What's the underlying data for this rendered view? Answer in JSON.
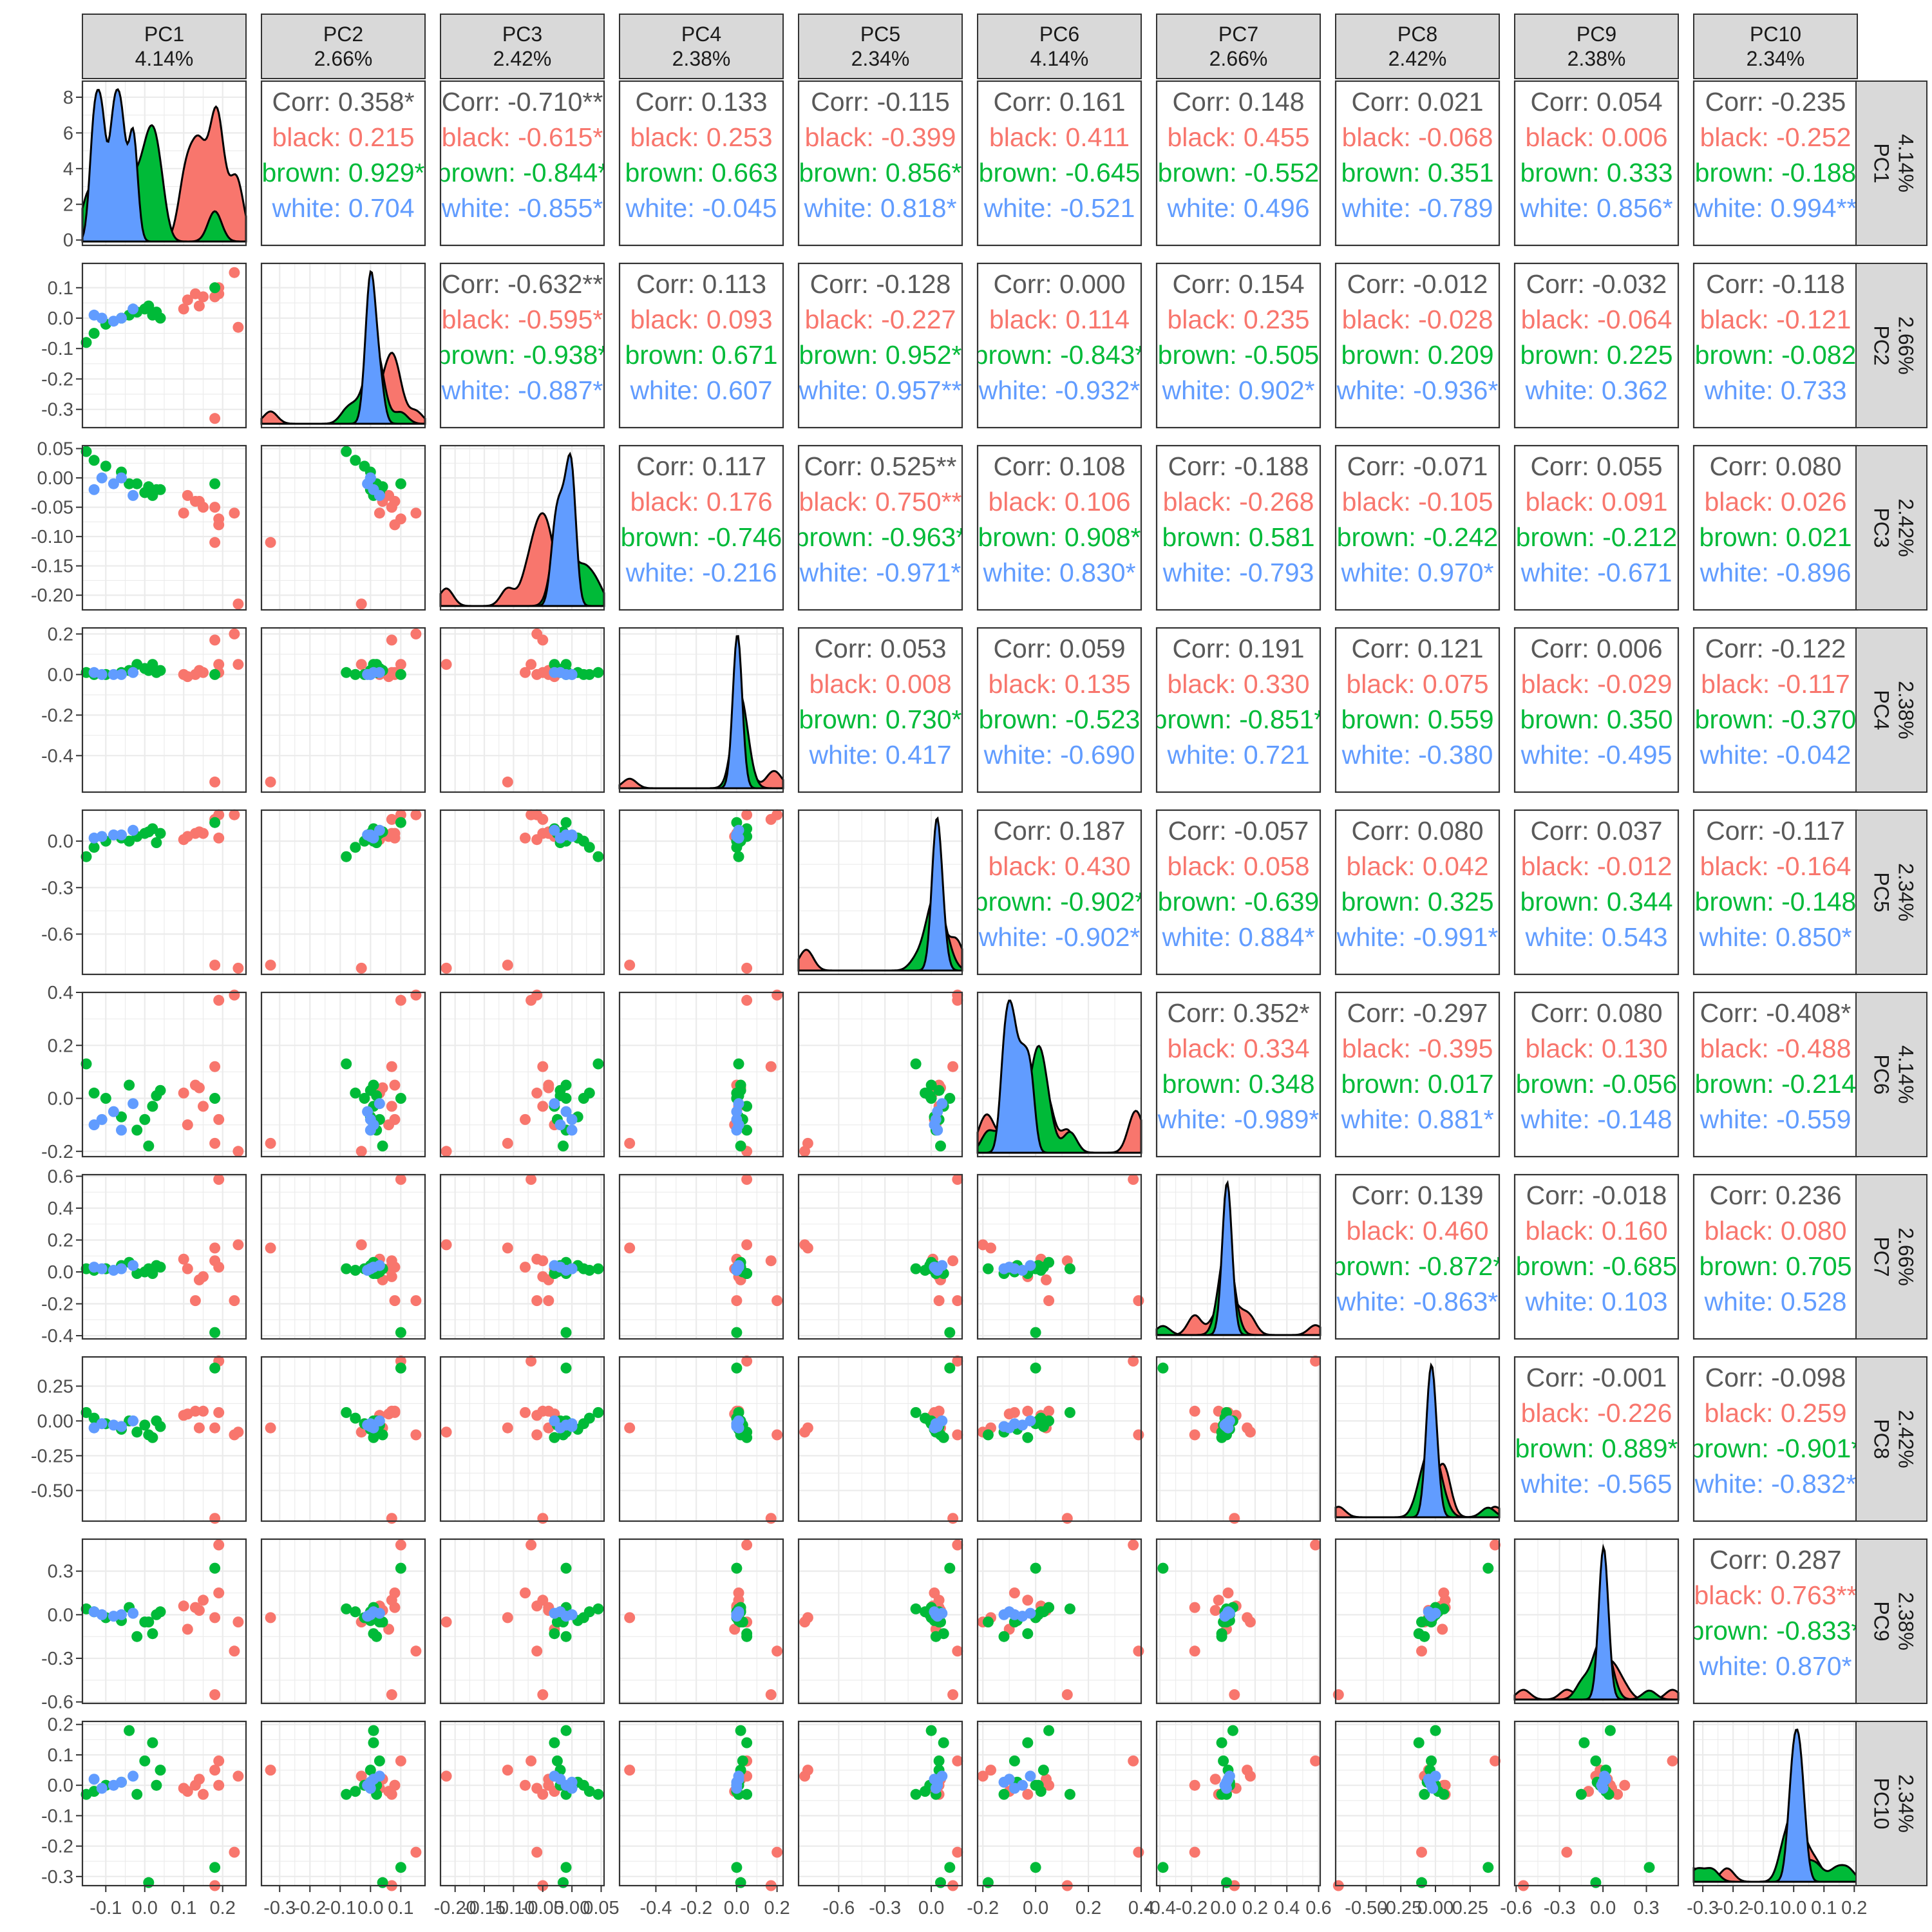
{
  "colors": {
    "overall": "#595959",
    "black": "#F8766D",
    "brown": "#00BA38",
    "white": "#619CFF",
    "strip_bg": "#D9D9D9",
    "panel_border": "#333333",
    "grid_major": "#EBEBEB",
    "density_line": "#000000"
  },
  "chart_data": {
    "type": "scatterplot-matrix",
    "title": "",
    "groups": [
      "black",
      "brown",
      "white"
    ],
    "variables": [
      {
        "name": "PC1",
        "pct": "4.14%"
      },
      {
        "name": "PC2",
        "pct": "2.66%"
      },
      {
        "name": "PC3",
        "pct": "2.42%"
      },
      {
        "name": "PC4",
        "pct": "2.38%"
      },
      {
        "name": "PC5",
        "pct": "2.34%"
      },
      {
        "name": "PC6",
        "pct": "4.14%"
      },
      {
        "name": "PC7",
        "pct": "2.66%"
      },
      {
        "name": "PC8",
        "pct": "2.42%"
      },
      {
        "name": "PC9",
        "pct": "2.38%"
      },
      {
        "name": "PC10",
        "pct": "2.34%"
      }
    ],
    "ranges": [
      [
        -0.16,
        0.26
      ],
      [
        -0.36,
        0.18
      ],
      [
        -0.225,
        0.055
      ],
      [
        -0.58,
        0.23
      ],
      [
        -0.86,
        0.2
      ],
      [
        -0.22,
        0.4
      ],
      [
        -0.42,
        0.61
      ],
      [
        -0.72,
        0.46
      ],
      [
        -0.61,
        0.52
      ],
      [
        -0.33,
        0.21
      ]
    ],
    "ticks": [
      [
        -0.1,
        0.0,
        0.1,
        0.2
      ],
      [
        -0.3,
        -0.2,
        -0.1,
        0.0,
        0.1
      ],
      [
        -0.2,
        -0.15,
        -0.1,
        -0.05,
        0.0,
        0.05
      ],
      [
        -0.4,
        -0.2,
        0.0,
        0.2
      ],
      [
        -0.6,
        -0.3,
        0.0
      ],
      [
        -0.2,
        0.0,
        0.2,
        0.4
      ],
      [
        -0.4,
        -0.2,
        0.0,
        0.2,
        0.4,
        0.6
      ],
      [
        -0.5,
        -0.25,
        0.0,
        0.25
      ],
      [
        -0.6,
        -0.3,
        0.0,
        0.3
      ],
      [
        -0.3,
        -0.2,
        -0.1,
        0.0,
        0.1,
        0.2
      ]
    ],
    "x_tick_labels": [
      [
        "-0.1",
        "0.0",
        "0.1",
        "0.2"
      ],
      [
        "-0.3",
        "-0.2",
        "-0.1",
        "0.0",
        "0.1"
      ],
      [
        "-0.20",
        "-0.15",
        "-0.10",
        "-0.05",
        "0.00",
        "0.05"
      ],
      [
        "-0.4",
        "-0.2",
        "0.0",
        "0.2"
      ],
      [
        "-0.6",
        "-0.3",
        "0.0"
      ],
      [
        "-0.2",
        "0.0",
        "0.2",
        "0.4"
      ],
      [
        "-0.4",
        "-0.2",
        "0.0",
        "0.2",
        "0.4",
        "0.6"
      ],
      [
        "-0.50",
        "-0.25",
        "0.00",
        "0.25"
      ],
      [
        "-0.6",
        "-0.3",
        "0.0",
        "0.3"
      ],
      [
        "-0.3",
        "-0.2",
        "-0.1",
        "0.0",
        "0.1",
        "0.2"
      ]
    ],
    "y_tick_labels": [
      [
        "0",
        "2",
        "4",
        "6",
        "8"
      ],
      [
        "-0.3",
        "-0.2",
        "-0.1",
        "0.0",
        "0.1"
      ],
      [
        "-0.20",
        "-0.15",
        "-0.10",
        "-0.05",
        "0.00",
        "0.05"
      ],
      [
        "-0.4",
        "-0.2",
        "0.0",
        "0.2"
      ],
      [
        "-0.6",
        "-0.3",
        "0.0"
      ],
      [
        "-0.2",
        "0.0",
        "0.2",
        "0.4"
      ],
      [
        "-0.4",
        "-0.2",
        "0.0",
        "0.2",
        "0.4",
        "0.6"
      ],
      [
        "-0.50",
        "-0.25",
        "0.00",
        "0.25"
      ],
      [
        "-0.6",
        "-0.3",
        "0.0",
        "0.3"
      ],
      [
        "-0.3",
        "-0.2",
        "-0.1",
        "0.0",
        "0.1",
        "0.2"
      ]
    ],
    "pc1_density_axis": {
      "ticks": [
        0,
        2,
        4,
        6,
        8
      ],
      "range": [
        -0.3,
        8.9
      ]
    },
    "correlations": {
      "PC1": {
        "PC2": {
          "Corr": "Corr: 0.358*",
          "black": "black: 0.215",
          "brown": "brown: 0.929*",
          "white": "white: 0.704"
        },
        "PC3": {
          "Corr": "Corr: -0.710**",
          "black": "black: -0.615*",
          "brown": "brown: -0.844*",
          "white": "white: -0.855*"
        },
        "PC4": {
          "Corr": "Corr: 0.133",
          "black": "black: 0.253",
          "brown": "brown: 0.663",
          "white": "white: -0.045"
        },
        "PC5": {
          "Corr": "Corr: -0.115",
          "black": "black: -0.399",
          "brown": "brown: 0.856*",
          "white": "white: 0.818*"
        },
        "PC6": {
          "Corr": "Corr: 0.161",
          "black": "black: 0.411",
          "brown": "brown: -0.645",
          "white": "white: -0.521"
        },
        "PC7": {
          "Corr": "Corr: 0.148",
          "black": "black: 0.455",
          "brown": "brown: -0.552",
          "white": "white: 0.496"
        },
        "PC8": {
          "Corr": "Corr: 0.021",
          "black": "black: -0.068",
          "brown": "brown: 0.351",
          "white": "white: -0.789"
        },
        "PC9": {
          "Corr": "Corr: 0.054",
          "black": "black: 0.006",
          "brown": "brown: 0.333",
          "white": "white: 0.856*"
        },
        "PC10": {
          "Corr": "Corr: -0.235",
          "black": "black: -0.252",
          "brown": "brown: -0.188",
          "white": "white: 0.994**"
        }
      },
      "PC2": {
        "PC3": {
          "Corr": "Corr: -0.632**",
          "black": "black: -0.595*",
          "brown": "brown: -0.938*",
          "white": "white: -0.887*"
        },
        "PC4": {
          "Corr": "Corr: 0.113",
          "black": "black: 0.093",
          "brown": "brown: 0.671",
          "white": "white: 0.607"
        },
        "PC5": {
          "Corr": "Corr: -0.128",
          "black": "black: -0.227",
          "brown": "brown: 0.952*",
          "white": "white: 0.957**"
        },
        "PC6": {
          "Corr": "Corr: 0.000",
          "black": "black: 0.114",
          "brown": "brown: -0.843*",
          "white": "white: -0.932*"
        },
        "PC7": {
          "Corr": "Corr: 0.154",
          "black": "black: 0.235",
          "brown": "brown: -0.505",
          "white": "white: 0.902*"
        },
        "PC8": {
          "Corr": "Corr: -0.012",
          "black": "black: -0.028",
          "brown": "brown: 0.209",
          "white": "white: -0.936*"
        },
        "PC9": {
          "Corr": "Corr: -0.032",
          "black": "black: -0.064",
          "brown": "brown: 0.225",
          "white": "white: 0.362"
        },
        "PC10": {
          "Corr": "Corr: -0.118",
          "black": "black: -0.121",
          "brown": "brown: -0.082",
          "white": "white: 0.733"
        }
      },
      "PC3": {
        "PC4": {
          "Corr": "Corr: 0.117",
          "black": "black: 0.176",
          "brown": "brown: -0.746",
          "white": "white: -0.216"
        },
        "PC5": {
          "Corr": "Corr: 0.525**",
          "black": "black: 0.750**",
          "brown": "brown: -0.963*",
          "white": "white: -0.971*"
        },
        "PC6": {
          "Corr": "Corr: 0.108",
          "black": "black: 0.106",
          "brown": "brown: 0.908*",
          "white": "white: 0.830*"
        },
        "PC7": {
          "Corr": "Corr: -0.188",
          "black": "black: -0.268",
          "brown": "brown: 0.581",
          "white": "white: -0.793"
        },
        "PC8": {
          "Corr": "Corr: -0.071",
          "black": "black: -0.105",
          "brown": "brown: -0.242",
          "white": "white: 0.970*"
        },
        "PC9": {
          "Corr": "Corr: 0.055",
          "black": "black: 0.091",
          "brown": "brown: -0.212",
          "white": "white: -0.671"
        },
        "PC10": {
          "Corr": "Corr: 0.080",
          "black": "black: 0.026",
          "brown": "brown: 0.021",
          "white": "white: -0.896"
        }
      },
      "PC4": {
        "PC5": {
          "Corr": "Corr: 0.053",
          "black": "black: 0.008",
          "brown": "brown: 0.730*",
          "white": "white: 0.417"
        },
        "PC6": {
          "Corr": "Corr: 0.059",
          "black": "black: 0.135",
          "brown": "brown: -0.523",
          "white": "white: -0.690"
        },
        "PC7": {
          "Corr": "Corr: 0.191",
          "black": "black: 0.330",
          "brown": "brown: -0.851*",
          "white": "white: 0.721"
        },
        "PC8": {
          "Corr": "Corr: 0.121",
          "black": "black: 0.075",
          "brown": "brown: 0.559",
          "white": "white: -0.380"
        },
        "PC9": {
          "Corr": "Corr: 0.006",
          "black": "black: -0.029",
          "brown": "brown: 0.350",
          "white": "white: -0.495"
        },
        "PC10": {
          "Corr": "Corr: -0.122",
          "black": "black: -0.117",
          "brown": "brown: -0.370",
          "white": "white: -0.042"
        }
      },
      "PC5": {
        "PC6": {
          "Corr": "Corr: 0.187",
          "black": "black: 0.430",
          "brown": "brown: -0.902*",
          "white": "white: -0.902*"
        },
        "PC7": {
          "Corr": "Corr: -0.057",
          "black": "black: 0.058",
          "brown": "brown: -0.639",
          "white": "white: 0.884*"
        },
        "PC8": {
          "Corr": "Corr: 0.080",
          "black": "black: 0.042",
          "brown": "brown: 0.325",
          "white": "white: -0.991*"
        },
        "PC9": {
          "Corr": "Corr: 0.037",
          "black": "black: -0.012",
          "brown": "brown: 0.344",
          "white": "white: 0.543"
        },
        "PC10": {
          "Corr": "Corr: -0.117",
          "black": "black: -0.164",
          "brown": "brown: -0.148",
          "white": "white: 0.850*"
        }
      },
      "PC6": {
        "PC7": {
          "Corr": "Corr: 0.352*",
          "black": "black: 0.334",
          "brown": "brown: 0.348",
          "white": "white: -0.989*"
        },
        "PC8": {
          "Corr": "Corr: -0.297",
          "black": "black: -0.395",
          "brown": "brown: 0.017",
          "white": "white: 0.881*"
        },
        "PC9": {
          "Corr": "Corr: 0.080",
          "black": "black: 0.130",
          "brown": "brown: -0.056",
          "white": "white: -0.148"
        },
        "PC10": {
          "Corr": "Corr: -0.408*",
          "black": "black: -0.488",
          "brown": "brown: -0.214",
          "white": "white: -0.559"
        }
      },
      "PC7": {
        "PC8": {
          "Corr": "Corr: 0.139",
          "black": "black: 0.460",
          "brown": "brown: -0.872*",
          "white": "white: -0.863*"
        },
        "PC9": {
          "Corr": "Corr: -0.018",
          "black": "black: 0.160",
          "brown": "brown: -0.685",
          "white": "white: 0.103"
        },
        "PC10": {
          "Corr": "Corr: 0.236",
          "black": "black: 0.080",
          "brown": "brown: 0.705",
          "white": "white: 0.528"
        }
      },
      "PC8": {
        "PC9": {
          "Corr": "Corr: -0.001",
          "black": "black: -0.226",
          "brown": "brown: 0.889*",
          "white": "white: -0.565"
        },
        "PC10": {
          "Corr": "Corr: -0.098",
          "black": "black: 0.259",
          "brown": "brown: -0.901*",
          "white": "white: -0.832*"
        }
      },
      "PC9": {
        "PC10": {
          "Corr": "Corr: 0.287",
          "black": "black: 0.763**",
          "brown": "brown: -0.833*",
          "white": "white: 0.870*"
        }
      }
    },
    "observations": [
      {
        "g": "black",
        "v": [
          0.24,
          -0.03,
          -0.215,
          0.05,
          -0.82,
          -0.2,
          0.17,
          -0.08,
          -0.05,
          0.03
        ]
      },
      {
        "g": "black",
        "v": [
          0.18,
          -0.33,
          -0.11,
          -0.53,
          -0.8,
          -0.17,
          0.15,
          -0.05,
          -0.02,
          0.05
        ]
      },
      {
        "g": "black",
        "v": [
          0.19,
          0.1,
          -0.07,
          0.05,
          0.17,
          0.37,
          0.58,
          0.43,
          0.48,
          0.08
        ]
      },
      {
        "g": "black",
        "v": [
          0.23,
          0.15,
          -0.06,
          0.2,
          0.17,
          0.39,
          -0.18,
          -0.1,
          -0.25,
          -0.22
        ]
      },
      {
        "g": "black",
        "v": [
          0.18,
          0.07,
          -0.05,
          0.17,
          0.14,
          0.12,
          0.07,
          -0.7,
          -0.55,
          -0.33
        ]
      },
      {
        "g": "black",
        "v": [
          0.13,
          0.08,
          -0.04,
          0.0,
          0.05,
          0.05,
          -0.18,
          0.07,
          0.05,
          0.0
        ]
      },
      {
        "g": "black",
        "v": [
          0.11,
          0.06,
          -0.03,
          -0.01,
          0.03,
          -0.1,
          0.02,
          0.05,
          -0.1,
          -0.02
        ]
      },
      {
        "g": "black",
        "v": [
          0.15,
          0.07,
          -0.05,
          0.01,
          0.05,
          -0.03,
          -0.03,
          0.07,
          0.1,
          -0.03
        ]
      },
      {
        "g": "black",
        "v": [
          0.19,
          0.08,
          -0.08,
          0.01,
          0.02,
          -0.08,
          0.03,
          0.06,
          0.15,
          0.0
        ]
      },
      {
        "g": "black",
        "v": [
          0.14,
          0.04,
          -0.04,
          0.02,
          0.06,
          0.04,
          -0.05,
          -0.05,
          0.03,
          0.02
        ]
      },
      {
        "g": "black",
        "v": [
          0.1,
          0.03,
          -0.06,
          0.0,
          0.01,
          0.02,
          0.08,
          0.04,
          0.06,
          -0.01
        ]
      },
      {
        "g": "brown",
        "v": [
          -0.15,
          -0.08,
          0.045,
          0.01,
          -0.1,
          0.13,
          0.02,
          0.06,
          0.04,
          -0.03
        ]
      },
      {
        "g": "brown",
        "v": [
          -0.13,
          -0.05,
          0.03,
          0.0,
          -0.04,
          0.02,
          0.01,
          0.02,
          0.02,
          -0.02
        ]
      },
      {
        "g": "brown",
        "v": [
          -0.1,
          -0.02,
          0.02,
          0.0,
          0.0,
          0.0,
          0.02,
          -0.02,
          -0.02,
          0.0
        ]
      },
      {
        "g": "brown",
        "v": [
          -0.06,
          0.0,
          0.01,
          0.01,
          0.02,
          -0.07,
          0.04,
          -0.06,
          -0.04,
          0.01
        ]
      },
      {
        "g": "brown",
        "v": [
          -0.02,
          0.02,
          -0.01,
          0.05,
          0.03,
          -0.12,
          -0.01,
          -0.08,
          -0.15,
          -0.03
        ]
      },
      {
        "g": "brown",
        "v": [
          0.0,
          0.03,
          -0.025,
          0.03,
          0.05,
          -0.08,
          0.0,
          -0.03,
          -0.05,
          0.08
        ]
      },
      {
        "g": "brown",
        "v": [
          0.02,
          0.01,
          -0.03,
          0.05,
          0.08,
          -0.03,
          -0.01,
          -0.12,
          -0.13,
          0.14
        ]
      },
      {
        "g": "brown",
        "v": [
          -0.04,
          0.01,
          -0.01,
          0.02,
          0.0,
          0.05,
          0.06,
          0.0,
          0.05,
          0.18
        ]
      },
      {
        "g": "brown",
        "v": [
          0.04,
          0.0,
          -0.02,
          0.02,
          0.05,
          0.03,
          0.03,
          -0.04,
          0.02,
          0.05
        ]
      },
      {
        "g": "brown",
        "v": [
          0.18,
          0.1,
          -0.01,
          0.0,
          0.12,
          0.0,
          -0.38,
          0.38,
          0.32,
          -0.27
        ]
      },
      {
        "g": "brown",
        "v": [
          0.01,
          0.04,
          -0.015,
          0.02,
          0.06,
          -0.18,
          0.02,
          -0.1,
          -0.05,
          -0.32
        ]
      },
      {
        "g": "brown",
        "v": [
          0.03,
          0.02,
          -0.02,
          0.01,
          -0.01,
          0.01,
          0.04,
          0.0,
          0.0,
          0.0
        ]
      },
      {
        "g": "white",
        "v": [
          -0.08,
          -0.01,
          -0.01,
          0.0,
          0.04,
          -0.05,
          0.01,
          -0.03,
          -0.01,
          0.0
        ]
      },
      {
        "g": "white",
        "v": [
          -0.11,
          0.0,
          0.0,
          0.0,
          0.03,
          -0.08,
          0.02,
          -0.02,
          0.0,
          -0.01
        ]
      },
      {
        "g": "white",
        "v": [
          -0.13,
          0.01,
          -0.02,
          0.01,
          0.02,
          -0.1,
          0.03,
          -0.05,
          0.02,
          0.02
        ]
      },
      {
        "g": "white",
        "v": [
          -0.03,
          0.03,
          -0.03,
          0.01,
          0.07,
          -0.02,
          0.04,
          0.0,
          0.01,
          0.03
        ]
      },
      {
        "g": "white",
        "v": [
          -0.06,
          0.0,
          0.0,
          0.0,
          0.04,
          -0.12,
          0.02,
          -0.04,
          0.0,
          0.01
        ]
      }
    ]
  }
}
